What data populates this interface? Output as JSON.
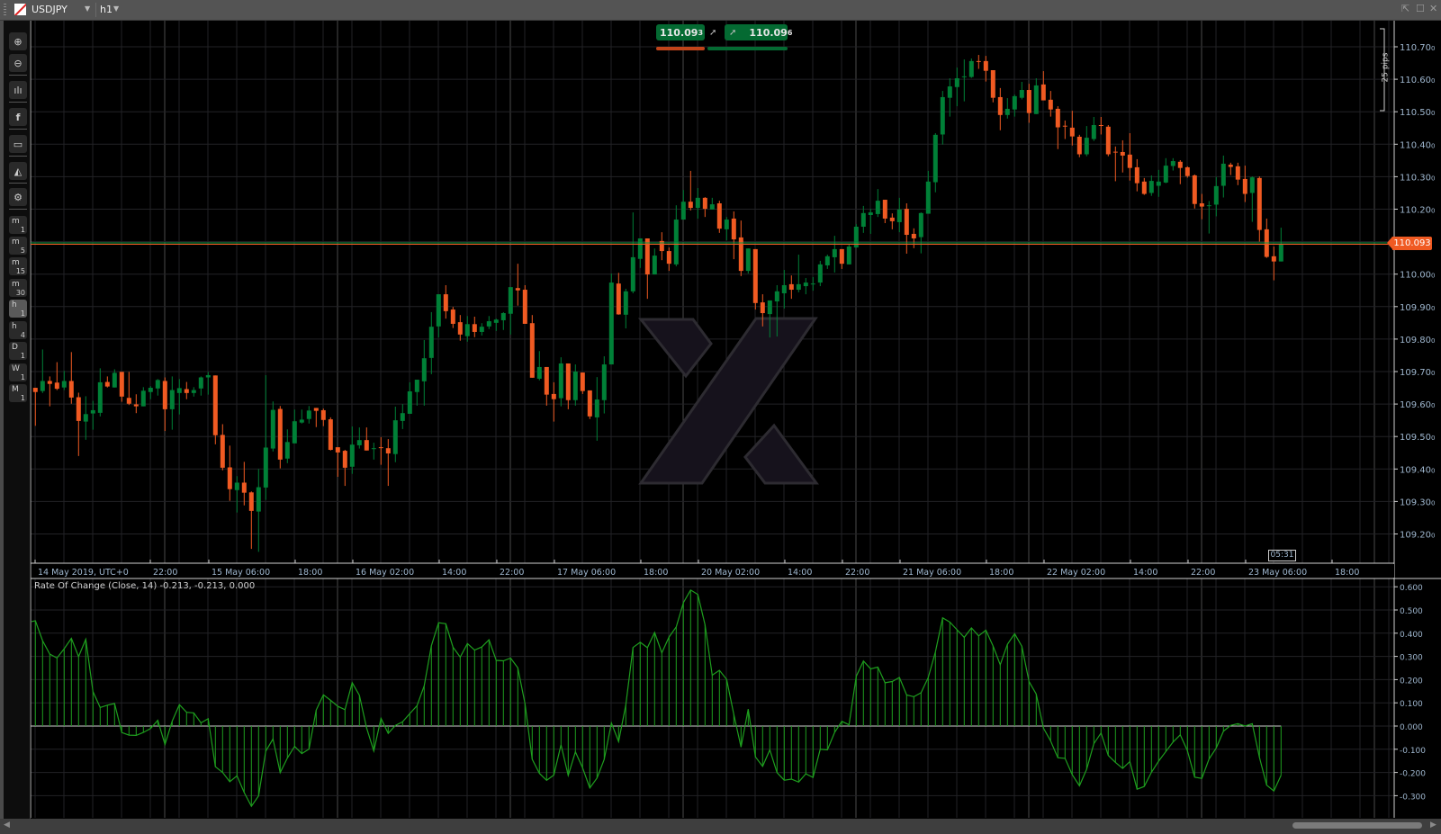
{
  "window": {
    "symbol": "USDJPY",
    "timeframe": "h1",
    "buttons": [
      "detach",
      "maximize",
      "close"
    ]
  },
  "toolbar": {
    "tools": [
      {
        "name": "zoom-in-icon"
      },
      {
        "name": "zoom-out-icon"
      },
      {
        "name": "chart-type-candles-icon"
      },
      {
        "name": "share-icon"
      },
      {
        "name": "automate-bot-icon"
      },
      {
        "name": "drawing-shapes-icon"
      },
      {
        "name": "chart-settings-icon"
      }
    ],
    "timeframes": [
      {
        "main": "m",
        "sub": "1"
      },
      {
        "main": "m",
        "sub": "5"
      },
      {
        "main": "m",
        "sub": "15"
      },
      {
        "main": "m",
        "sub": "30"
      },
      {
        "main": "h",
        "sub": "1",
        "active": true
      },
      {
        "main": "h",
        "sub": "4"
      },
      {
        "main": "D",
        "sub": "1"
      },
      {
        "main": "W",
        "sub": "1"
      },
      {
        "main": "M",
        "sub": "1"
      }
    ]
  },
  "trade": {
    "sell_price": "110.09",
    "sell_pip": "3",
    "buy_price": "110.09",
    "buy_pip": "6",
    "sell_color": "#f05a22",
    "buy_color": "#046a32"
  },
  "current_price": "110.093",
  "countdown": "05:31",
  "pips_ruler": "25 pips",
  "indicator_label": "Rate Of Change (Close, 14) -0.213, -0.213, 0.000",
  "colors": {
    "bull": "#008037",
    "bear": "#f05a22",
    "roc": "#1e9e1e",
    "axis_text": "#9fb7cf"
  },
  "chart_data": [
    {
      "type": "candlestick",
      "interval": "1 hour",
      "timezone": "UTC+0",
      "ylim": [
        109.2,
        110.7
      ],
      "yticks": [
        "110.700",
        "110.600",
        "110.500",
        "110.400",
        "110.300",
        "110.200",
        "110.100",
        "110.000",
        "109.900",
        "109.800",
        "109.700",
        "109.600",
        "109.500",
        "109.400",
        "109.300",
        "109.200"
      ],
      "xtick_labels": [
        "14 May 2019, UTC+0",
        "22:00",
        "15 May 06:00",
        "18:00",
        "16 May 02:00",
        "14:00",
        "22:00",
        "17 May 06:00",
        "18:00",
        "20 May 02:00",
        "14:00",
        "22:00",
        "21 May 06:00",
        "18:00",
        "22 May 02:00",
        "14:00",
        "22:00",
        "23 May 06:00",
        "18:00"
      ],
      "grid": true,
      "last_price": 110.093,
      "ohlc_fields": [
        "open",
        "high",
        "low",
        "close"
      ],
      "ohlc": [
        [
          109.65,
          109.65,
          109.533,
          109.637
        ],
        [
          109.64,
          109.768,
          109.634,
          109.671
        ],
        [
          109.671,
          109.685,
          109.593,
          109.662
        ],
        [
          109.666,
          109.729,
          109.643,
          109.647
        ],
        [
          109.651,
          109.702,
          109.643,
          109.671
        ],
        [
          109.671,
          109.76,
          109.601,
          109.62
        ],
        [
          109.621,
          109.635,
          109.44,
          109.548
        ],
        [
          109.546,
          109.624,
          109.49,
          109.569
        ],
        [
          109.571,
          109.61,
          109.521,
          109.581
        ],
        [
          109.573,
          109.71,
          109.562,
          109.667
        ],
        [
          109.668,
          109.685,
          109.651,
          109.654
        ],
        [
          109.651,
          109.707,
          109.651,
          109.696
        ],
        [
          109.699,
          109.699,
          109.607,
          109.623
        ],
        [
          109.619,
          109.699,
          109.597,
          109.601
        ],
        [
          109.599,
          109.63,
          109.572,
          109.593
        ],
        [
          109.593,
          109.652,
          109.593,
          109.641
        ],
        [
          109.637,
          109.655,
          109.615,
          109.65
        ],
        [
          109.648,
          109.677,
          109.626,
          109.674
        ],
        [
          109.671,
          109.682,
          109.517,
          109.584
        ],
        [
          109.584,
          109.685,
          109.521,
          109.643
        ],
        [
          109.634,
          109.677,
          109.568,
          109.649
        ],
        [
          109.646,
          109.668,
          109.615,
          109.634
        ],
        [
          109.634,
          109.652,
          109.623,
          109.643
        ],
        [
          109.648,
          109.685,
          109.626,
          109.682
        ],
        [
          109.682,
          109.699,
          109.629,
          109.689
        ],
        [
          109.688,
          109.688,
          109.476,
          109.504
        ],
        [
          109.505,
          109.538,
          109.396,
          109.404
        ],
        [
          109.405,
          109.472,
          109.302,
          109.338
        ],
        [
          109.335,
          109.378,
          109.266,
          109.358
        ],
        [
          109.358,
          109.422,
          109.288,
          109.327
        ],
        [
          109.328,
          109.331,
          109.154,
          109.271
        ],
        [
          109.269,
          109.4,
          109.145,
          109.344
        ],
        [
          109.343,
          109.689,
          109.305,
          109.466
        ],
        [
          109.463,
          109.608,
          109.454,
          109.582
        ],
        [
          109.585,
          109.594,
          109.402,
          109.429
        ],
        [
          109.432,
          109.522,
          109.418,
          109.483
        ],
        [
          109.479,
          109.583,
          109.479,
          109.547
        ],
        [
          109.543,
          109.583,
          109.54,
          109.552
        ],
        [
          109.554,
          109.594,
          109.54,
          109.58
        ],
        [
          109.588,
          109.588,
          109.529,
          109.579
        ],
        [
          109.581,
          109.586,
          109.532,
          109.551
        ],
        [
          109.553,
          109.559,
          109.457,
          109.459
        ],
        [
          109.467,
          109.467,
          109.376,
          109.451
        ],
        [
          109.456,
          109.459,
          109.348,
          109.404
        ],
        [
          109.407,
          109.531,
          109.385,
          109.475
        ],
        [
          109.473,
          109.528,
          109.463,
          109.489
        ],
        [
          109.489,
          109.528,
          109.457,
          109.457
        ],
        [
          109.463,
          109.481,
          109.429,
          109.464
        ],
        [
          109.467,
          109.498,
          109.413,
          109.465
        ],
        [
          109.464,
          109.492,
          109.348,
          109.448
        ],
        [
          109.446,
          109.592,
          109.421,
          109.55
        ],
        [
          109.548,
          109.6,
          109.523,
          109.572
        ],
        [
          109.57,
          109.667,
          109.57,
          109.639
        ],
        [
          109.637,
          109.675,
          109.595,
          109.675
        ],
        [
          109.67,
          109.797,
          109.595,
          109.741
        ],
        [
          109.742,
          109.883,
          109.692,
          109.838
        ],
        [
          109.839,
          109.938,
          109.805,
          109.938
        ],
        [
          109.938,
          109.966,
          109.863,
          109.886
        ],
        [
          109.891,
          109.899,
          109.834,
          109.847
        ],
        [
          109.852,
          109.874,
          109.795,
          109.814
        ],
        [
          109.809,
          109.871,
          109.792,
          109.846
        ],
        [
          109.846,
          109.869,
          109.806,
          109.822
        ],
        [
          109.822,
          109.849,
          109.811,
          109.838
        ],
        [
          109.839,
          109.871,
          109.831,
          109.855
        ],
        [
          109.85,
          109.863,
          109.825,
          109.86
        ],
        [
          109.858,
          109.883,
          109.828,
          109.88
        ],
        [
          109.878,
          109.96,
          109.814,
          109.96
        ],
        [
          109.957,
          110.032,
          109.903,
          109.95
        ],
        [
          109.952,
          109.966,
          109.847,
          109.847
        ],
        [
          109.849,
          109.874,
          109.681,
          109.681
        ],
        [
          109.678,
          109.763,
          109.673,
          109.714
        ],
        [
          109.714,
          109.714,
          109.595,
          109.629
        ],
        [
          109.631,
          109.667,
          109.546,
          109.615
        ],
        [
          109.618,
          109.744,
          109.593,
          109.725
        ],
        [
          109.725,
          109.725,
          109.584,
          109.612
        ],
        [
          109.612,
          109.722,
          109.595,
          109.7
        ],
        [
          109.697,
          109.697,
          109.631,
          109.64
        ],
        [
          109.642,
          109.642,
          109.554,
          109.562
        ],
        [
          109.559,
          109.683,
          109.487,
          109.614
        ],
        [
          109.612,
          109.747,
          109.571,
          109.722
        ],
        [
          109.722,
          110.002,
          109.722,
          109.974
        ],
        [
          109.971,
          110.004,
          109.875,
          109.876
        ],
        [
          109.875,
          109.955,
          109.833,
          109.947
        ],
        [
          109.947,
          110.19,
          109.941,
          110.052
        ],
        [
          110.047,
          110.11,
          110.019,
          110.11
        ],
        [
          110.11,
          110.11,
          109.924,
          109.999
        ],
        [
          109.999,
          110.079,
          109.999,
          110.057
        ],
        [
          110.102,
          110.129,
          110.043,
          110.071
        ],
        [
          110.071,
          110.082,
          110.01,
          110.032
        ],
        [
          110.03,
          110.212,
          110.024,
          110.168
        ],
        [
          110.168,
          110.259,
          110.168,
          110.223
        ],
        [
          110.223,
          110.318,
          110.196,
          110.204
        ],
        [
          110.204,
          110.265,
          110.171,
          110.235
        ],
        [
          110.235,
          110.237,
          110.176,
          110.201
        ],
        [
          110.199,
          110.235,
          110.199,
          110.215
        ],
        [
          110.218,
          110.226,
          110.127,
          110.14
        ],
        [
          110.138,
          110.176,
          110.104,
          110.168
        ],
        [
          110.171,
          110.193,
          110.046,
          110.107
        ],
        [
          110.113,
          110.165,
          109.994,
          110.01
        ],
        [
          110.01,
          110.079,
          110.002,
          110.079
        ],
        [
          110.077,
          110.077,
          109.891,
          109.911
        ],
        [
          109.913,
          109.938,
          109.839,
          109.88
        ],
        [
          109.877,
          109.919,
          109.805,
          109.919
        ],
        [
          109.916,
          109.966,
          109.808,
          109.947
        ],
        [
          109.941,
          110.013,
          109.894,
          109.966
        ],
        [
          109.969,
          109.996,
          109.924,
          109.952
        ],
        [
          109.952,
          110.06,
          109.944,
          109.969
        ],
        [
          109.963,
          109.988,
          109.938,
          109.974
        ],
        [
          109.97,
          109.991,
          109.949,
          109.971
        ],
        [
          109.974,
          110.041,
          109.963,
          110.03
        ],
        [
          110.027,
          110.06,
          110.016,
          110.055
        ],
        [
          110.052,
          110.118,
          110.005,
          110.077
        ],
        [
          110.077,
          110.077,
          110.016,
          110.032
        ],
        [
          110.03,
          110.091,
          110.03,
          110.085
        ],
        [
          110.082,
          110.154,
          110.082,
          110.146
        ],
        [
          110.146,
          110.21,
          110.127,
          110.188
        ],
        [
          110.182,
          110.201,
          110.124,
          110.19
        ],
        [
          110.185,
          110.262,
          110.176,
          110.226
        ],
        [
          110.229,
          110.229,
          110.157,
          110.171
        ],
        [
          110.174,
          110.187,
          110.138,
          110.163
        ],
        [
          110.16,
          110.235,
          110.129,
          110.199
        ],
        [
          110.201,
          110.218,
          110.063,
          110.121
        ],
        [
          110.124,
          110.141,
          110.08,
          110.11
        ],
        [
          110.114,
          110.19,
          110.064,
          110.188
        ],
        [
          110.186,
          110.318,
          110.186,
          110.285
        ],
        [
          110.283,
          110.434,
          110.252,
          110.429
        ],
        [
          110.43,
          110.564,
          110.399,
          110.545
        ],
        [
          110.543,
          110.603,
          110.485,
          110.578
        ],
        [
          110.576,
          110.636,
          110.517,
          110.603
        ],
        [
          110.608,
          110.661,
          110.532,
          110.609
        ],
        [
          110.607,
          110.664,
          110.604,
          110.656
        ],
        [
          110.656,
          110.675,
          110.632,
          110.654
        ],
        [
          110.656,
          110.672,
          110.593,
          110.626
        ],
        [
          110.628,
          110.628,
          110.529,
          110.543
        ],
        [
          110.545,
          110.573,
          110.443,
          110.49
        ],
        [
          110.49,
          110.542,
          110.479,
          110.509
        ],
        [
          110.507,
          110.553,
          110.485,
          110.548
        ],
        [
          110.543,
          110.592,
          110.538,
          110.567
        ],
        [
          110.567,
          110.586,
          110.466,
          110.496
        ],
        [
          110.493,
          110.603,
          110.493,
          110.581
        ],
        [
          110.584,
          110.625,
          110.535,
          110.535
        ],
        [
          110.537,
          110.564,
          110.485,
          110.507
        ],
        [
          110.509,
          110.517,
          110.385,
          110.452
        ],
        [
          110.457,
          110.473,
          110.416,
          110.455
        ],
        [
          110.451,
          110.503,
          110.396,
          110.424
        ],
        [
          110.423,
          110.429,
          110.36,
          110.369
        ],
        [
          110.369,
          110.456,
          110.363,
          110.42
        ],
        [
          110.416,
          110.484,
          110.41,
          110.459
        ],
        [
          110.459,
          110.484,
          110.43,
          110.457
        ],
        [
          110.454,
          110.459,
          110.363,
          110.369
        ],
        [
          110.377,
          110.393,
          110.286,
          110.375
        ],
        [
          110.376,
          110.412,
          110.313,
          110.365
        ],
        [
          110.368,
          110.434,
          110.288,
          110.327
        ],
        [
          110.329,
          110.354,
          110.255,
          110.28
        ],
        [
          110.285,
          110.296,
          110.244,
          110.247
        ],
        [
          110.25,
          110.304,
          110.241,
          110.287
        ],
        [
          110.272,
          110.321,
          110.238,
          110.285
        ],
        [
          110.282,
          110.357,
          110.28,
          110.334
        ],
        [
          110.333,
          110.357,
          110.319,
          110.348
        ],
        [
          110.346,
          110.351,
          110.277,
          110.327
        ],
        [
          110.329,
          110.332,
          110.297,
          110.302
        ],
        [
          110.304,
          110.307,
          110.202,
          110.216
        ],
        [
          110.218,
          110.247,
          110.169,
          110.208
        ],
        [
          110.21,
          110.225,
          110.125,
          110.212
        ],
        [
          110.214,
          110.299,
          110.178,
          110.271
        ],
        [
          110.272,
          110.365,
          110.236,
          110.34
        ],
        [
          110.337,
          110.343,
          110.305,
          110.33
        ],
        [
          110.332,
          110.343,
          110.274,
          110.291
        ],
        [
          110.293,
          110.334,
          110.222,
          110.247
        ],
        [
          110.25,
          110.301,
          110.161,
          110.298
        ],
        [
          110.296,
          110.301,
          110.1,
          110.136
        ],
        [
          110.138,
          110.171,
          110.05,
          110.053
        ],
        [
          110.055,
          110.085,
          109.981,
          110.039
        ],
        [
          110.039,
          110.143,
          110.039,
          110.093
        ]
      ]
    },
    {
      "type": "bar",
      "indicator": "Rate Of Change (Close, 14)",
      "period": 14,
      "ylim": [
        -0.3,
        0.6
      ],
      "yticks": [
        "0.600",
        "0.500",
        "0.400",
        "0.300",
        "0.200",
        "0.100",
        "0.000",
        "-0.100",
        "-0.200",
        "-0.300"
      ],
      "values_first14": [
        0.454,
        0.368,
        0.31,
        0.293,
        0.333,
        0.378,
        0.299,
        0.374,
        0.148,
        0.08,
        0.09,
        0.097,
        -0.028,
        -0.039
      ],
      "last_values": [
        -0.213,
        -0.213,
        0.0
      ]
    }
  ]
}
